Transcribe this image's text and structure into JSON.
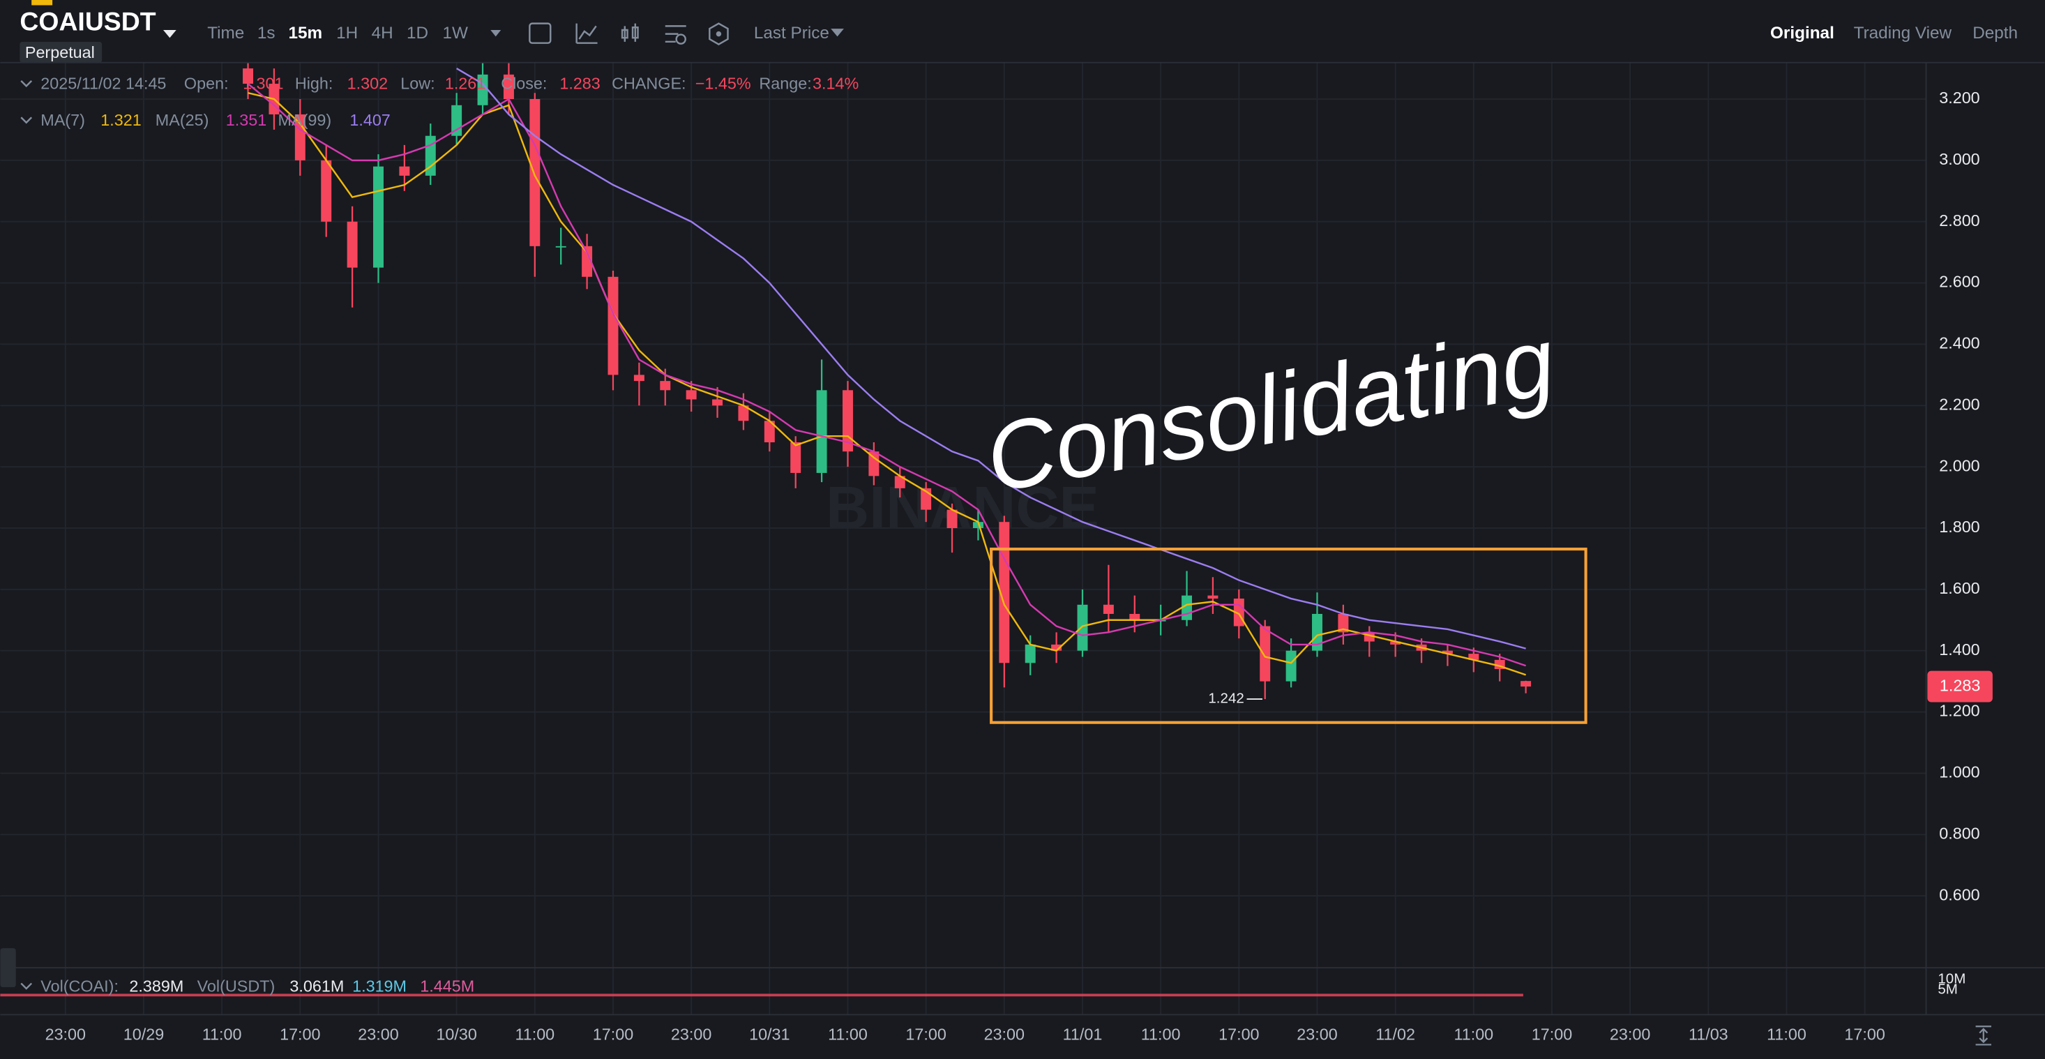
{
  "header": {
    "symbol": "COAIUSDT",
    "contract": "Perpetual",
    "intervals": [
      "Time",
      "1s",
      "15m",
      "1H",
      "4H",
      "1D",
      "1W"
    ],
    "price_type": "Last Price",
    "views": [
      "Original",
      "Trading View",
      "Depth"
    ]
  },
  "info": {
    "datetime": "2025/11/02 14:45",
    "open_label": "Open:",
    "high_label": "High:",
    "low_label": "Low:",
    "close_label": "Close:",
    "change_label": "CHANGE:",
    "change": "−1.45%",
    "range_label": "Range:",
    "range": "3.14%"
  },
  "volume": {
    "labels": [
      "Vol(COAI):",
      "2.389M",
      "Vol(USDT)",
      "3.061M",
      "1.319M",
      "1.445M"
    ],
    "axis": [
      "10M",
      "5M"
    ]
  },
  "chart_data": {
    "type": "candlestick",
    "watermark": "BINANCE",
    "annotation": "Consolidating",
    "up_color": "#2ebd85",
    "down_color": "#f6465d",
    "ylim": [
      0.374,
      3.319
    ],
    "yticks": [
      {
        "value": 0.6,
        "label": "0.600"
      },
      {
        "value": 0.8,
        "label": "0.800"
      },
      {
        "value": 1.0,
        "label": "1.000"
      },
      {
        "value": 1.2,
        "label": "1.200"
      },
      {
        "value": 1.4,
        "label": "1.400"
      },
      {
        "value": 1.6,
        "label": "1.600"
      },
      {
        "value": 1.8,
        "label": "1.800"
      },
      {
        "value": 2.0,
        "label": "2.000"
      },
      {
        "value": 2.2,
        "label": "2.200"
      },
      {
        "value": 2.4,
        "label": "2.400"
      },
      {
        "value": 2.6,
        "label": "2.600"
      },
      {
        "value": 2.8,
        "label": "2.800"
      },
      {
        "value": 3.0,
        "label": "3.000"
      },
      {
        "value": 3.2,
        "label": "3.200"
      }
    ],
    "xticks": [
      "23:00",
      "10/29",
      "11:00",
      "17:00",
      "23:00",
      "10/30",
      "11:00",
      "17:00",
      "23:00",
      "10/31",
      "11:00",
      "17:00",
      "23:00",
      "11/01",
      "11:00",
      "17:00",
      "23:00",
      "11/02",
      "11:00",
      "17:00",
      "23:00",
      "11/03",
      "11:00",
      "17:00"
    ],
    "grid": true,
    "open": [
      3.3,
      3.25,
      3.15,
      3.0,
      2.8,
      2.65,
      2.98,
      2.95,
      3.08,
      3.18,
      3.28,
      3.2,
      2.72,
      2.72,
      2.62,
      2.3,
      2.28,
      2.25,
      2.22,
      2.2,
      2.15,
      2.08,
      1.98,
      2.25,
      2.05,
      1.97,
      1.93,
      1.86,
      1.8,
      1.82,
      1.36,
      1.42,
      1.4,
      1.55,
      1.52,
      1.5,
      1.5,
      1.58,
      1.57,
      1.48,
      1.3,
      1.4,
      1.52,
      1.46,
      1.43,
      1.42,
      1.4,
      1.39,
      1.37,
      1.301
    ],
    "high": [
      3.35,
      3.3,
      3.2,
      3.05,
      2.85,
      3.02,
      3.05,
      3.12,
      3.22,
      3.32,
      3.32,
      3.22,
      2.78,
      2.76,
      2.64,
      2.34,
      2.32,
      2.28,
      2.26,
      2.24,
      2.18,
      2.1,
      2.35,
      2.28,
      2.08,
      2.0,
      1.95,
      1.88,
      1.86,
      1.84,
      1.45,
      1.46,
      1.6,
      1.68,
      1.58,
      1.55,
      1.66,
      1.64,
      1.6,
      1.5,
      1.44,
      1.59,
      1.55,
      1.48,
      1.46,
      1.44,
      1.42,
      1.41,
      1.39,
      1.302
    ],
    "low": [
      3.2,
      3.1,
      2.95,
      2.75,
      2.52,
      2.6,
      2.9,
      2.92,
      3.05,
      3.15,
      3.15,
      2.62,
      2.66,
      2.58,
      2.25,
      2.2,
      2.2,
      2.18,
      2.16,
      2.12,
      2.05,
      1.93,
      1.95,
      2.0,
      1.94,
      1.9,
      1.82,
      1.72,
      1.76,
      1.28,
      1.32,
      1.36,
      1.38,
      1.46,
      1.46,
      1.45,
      1.48,
      1.52,
      1.44,
      1.242,
      1.28,
      1.38,
      1.42,
      1.38,
      1.38,
      1.36,
      1.35,
      1.33,
      1.3,
      1.261
    ],
    "close": [
      3.25,
      3.15,
      3.0,
      2.8,
      2.65,
      2.98,
      2.95,
      3.08,
      3.18,
      3.28,
      3.2,
      2.72,
      2.72,
      2.62,
      2.3,
      2.28,
      2.25,
      2.22,
      2.2,
      2.15,
      2.08,
      1.98,
      2.25,
      2.05,
      1.97,
      1.93,
      1.86,
      1.8,
      1.82,
      1.36,
      1.42,
      1.4,
      1.55,
      1.52,
      1.5,
      1.5,
      1.58,
      1.57,
      1.48,
      1.3,
      1.4,
      1.52,
      1.46,
      1.43,
      1.42,
      1.4,
      1.39,
      1.37,
      1.34,
      1.283
    ],
    "series": [
      {
        "name": "MA(7)",
        "color": "#f0b90b",
        "values": [
          3.22,
          3.2,
          3.12,
          3.0,
          2.88,
          2.9,
          2.92,
          2.98,
          3.05,
          3.15,
          3.18,
          2.95,
          2.8,
          2.7,
          2.5,
          2.38,
          2.3,
          2.26,
          2.23,
          2.2,
          2.15,
          2.07,
          2.1,
          2.1,
          2.03,
          1.97,
          1.92,
          1.86,
          1.82,
          1.55,
          1.42,
          1.4,
          1.48,
          1.5,
          1.5,
          1.5,
          1.55,
          1.56,
          1.52,
          1.38,
          1.36,
          1.45,
          1.47,
          1.45,
          1.43,
          1.41,
          1.39,
          1.37,
          1.35,
          1.321
        ]
      },
      {
        "name": "MA(25)",
        "color": "#d63ab0",
        "values": [
          3.25,
          3.18,
          3.1,
          3.05,
          3.0,
          3.0,
          3.02,
          3.05,
          3.1,
          3.15,
          3.2,
          3.05,
          2.85,
          2.7,
          2.5,
          2.35,
          2.3,
          2.27,
          2.25,
          2.22,
          2.18,
          2.12,
          2.1,
          2.08,
          2.05,
          2.0,
          1.96,
          1.92,
          1.86,
          1.7,
          1.55,
          1.48,
          1.45,
          1.46,
          1.48,
          1.5,
          1.52,
          1.55,
          1.55,
          1.47,
          1.42,
          1.42,
          1.45,
          1.46,
          1.45,
          1.43,
          1.42,
          1.4,
          1.38,
          1.351
        ]
      },
      {
        "name": "MA(99)",
        "color": "#9c7df0",
        "values": [
          null,
          null,
          null,
          null,
          null,
          null,
          null,
          null,
          3.3,
          3.25,
          3.15,
          3.08,
          3.02,
          2.97,
          2.92,
          2.88,
          2.84,
          2.8,
          2.74,
          2.68,
          2.6,
          2.5,
          2.4,
          2.3,
          2.22,
          2.15,
          2.1,
          2.05,
          2.02,
          1.95,
          1.9,
          1.86,
          1.82,
          1.79,
          1.76,
          1.73,
          1.7,
          1.67,
          1.63,
          1.6,
          1.57,
          1.55,
          1.52,
          1.5,
          1.49,
          1.48,
          1.47,
          1.45,
          1.43,
          1.407
        ]
      }
    ]
  }
}
